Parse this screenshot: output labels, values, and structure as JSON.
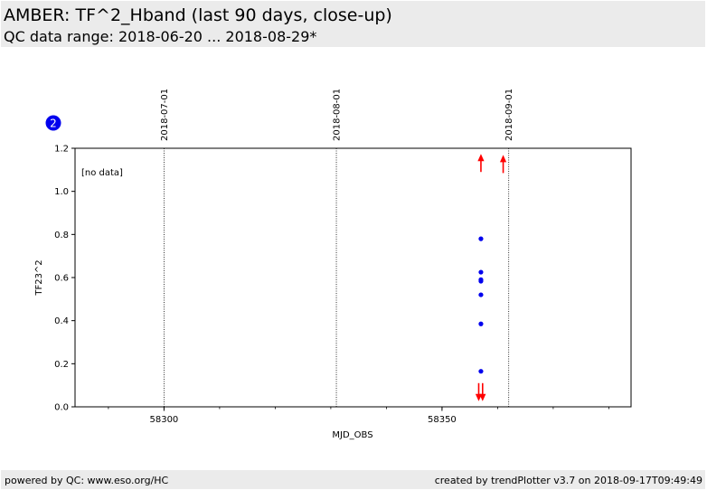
{
  "header": {
    "title": "AMBER: TF^2_Hband (last 90 days, close-up)",
    "subtitle": "QC data range: 2018-06-20 ... 2018-08-29*"
  },
  "footer": {
    "left": "powered by QC: www.eso.org/HC",
    "right": "created by trendPlotter v3.7 on 2018-09-17T09:49:49"
  },
  "colors": {
    "accent": "#0000ee",
    "outlier": "#ff0000",
    "panel": "#ebebeb"
  },
  "chart_data": {
    "type": "scatter",
    "badge": "2",
    "no_data_label": "[no data]",
    "xlabel": "MJD_OBS",
    "ylabel": "TF23^2",
    "xlim": [
      58284,
      58384
    ],
    "ylim": [
      0,
      1.2
    ],
    "x_ticks": [
      58300,
      58350
    ],
    "y_ticks": [
      0.0,
      0.2,
      0.4,
      0.6,
      0.8,
      1.0,
      1.2
    ],
    "y_tick_labels": [
      "0.0",
      "0.2",
      "0.4",
      "0.6",
      "0.8",
      "1.0",
      "1.2"
    ],
    "date_markers": [
      {
        "x": 58300,
        "label": "2018-07-01"
      },
      {
        "x": 58331,
        "label": "2018-08-01"
      },
      {
        "x": 58362,
        "label": "2018-09-01"
      }
    ],
    "series": [
      {
        "marker": "dot",
        "color": "#0000ee",
        "points": [
          {
            "x": 58357,
            "y": 0.78
          },
          {
            "x": 58357,
            "y": 0.625
          },
          {
            "x": 58357,
            "y": 0.59
          },
          {
            "x": 58357,
            "y": 0.583
          },
          {
            "x": 58357,
            "y": 0.52
          },
          {
            "x": 58357,
            "y": 0.385
          },
          {
            "x": 58357,
            "y": 0.165
          }
        ]
      },
      {
        "marker": "outlier-up",
        "color": "#ff0000",
        "points": [
          {
            "x": 58357,
            "y": 1.09
          },
          {
            "x": 58361,
            "y": 1.085
          }
        ]
      },
      {
        "marker": "outlier-down",
        "color": "#ff0000",
        "points": [
          {
            "x": 58356.6,
            "y": 0.11
          },
          {
            "x": 58357.3,
            "y": 0.11
          }
        ]
      }
    ]
  }
}
